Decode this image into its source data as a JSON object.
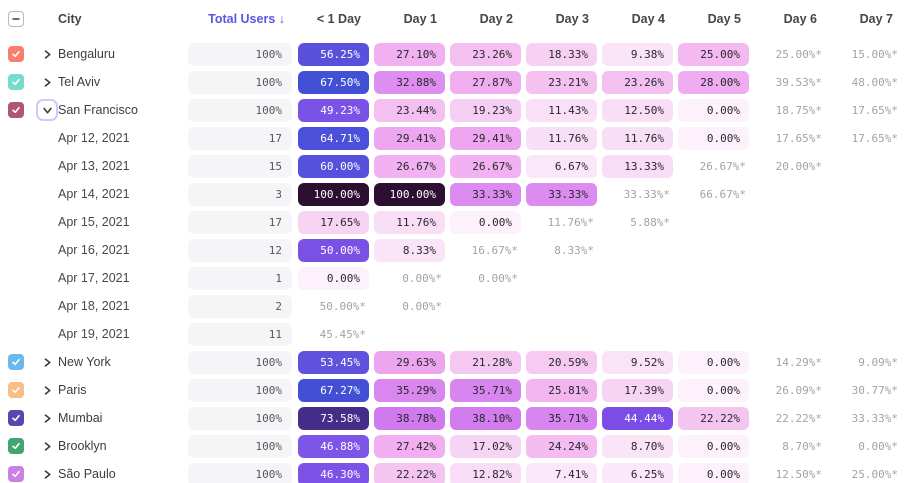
{
  "header": {
    "select_all_state": "indeterminate",
    "columns": [
      "City",
      "Total Users ↓",
      "< 1 Day",
      "Day 1",
      "Day 2",
      "Day 3",
      "Day 4",
      "Day 5",
      "Day 6",
      "Day 7"
    ]
  },
  "colors": {
    "accent_sort": "#5a55e2",
    "header_text": "#45454d",
    "star_text": "#a2a2a8",
    "total_pill_bg": "#f5f5f7",
    "heat_text_dark": "#28282d",
    "heat_text_light": "#ffffff",
    "heat_light_text_threshold": 42,
    "heat_scale": [
      [
        0,
        "#fdf1fb"
      ],
      [
        8,
        "#fae6f8"
      ],
      [
        13,
        "#f9ddf6"
      ],
      [
        18,
        "#f7d2f4"
      ],
      [
        22,
        "#f5c6f2"
      ],
      [
        26,
        "#f3b4f0"
      ],
      [
        30,
        "#eda4f0"
      ],
      [
        33,
        "#dd8df0"
      ],
      [
        36,
        "#d884ef"
      ],
      [
        39,
        "#d078ee"
      ],
      [
        42,
        "#a75eeb"
      ],
      [
        44,
        "#7b4ce6"
      ],
      [
        47,
        "#7d55e7"
      ],
      [
        51,
        "#7750e4"
      ],
      [
        54,
        "#5c52dd"
      ],
      [
        58,
        "#5750da"
      ],
      [
        62,
        "#5251df"
      ],
      [
        66,
        "#4650d7"
      ],
      [
        69,
        "#3e50d4"
      ],
      [
        74,
        "#432a81"
      ],
      [
        85,
        "#351b52"
      ],
      [
        100,
        "#2d1031"
      ]
    ]
  },
  "rows": [
    {
      "type": "city",
      "label": "Bengaluru",
      "checkbox_color": "#f97e6d",
      "checked": true,
      "expanded": false,
      "total": "100%",
      "cells": [
        {
          "text": "56.25%",
          "value": 56.25
        },
        {
          "text": "27.10%",
          "value": 27.1
        },
        {
          "text": "23.26%",
          "value": 23.26
        },
        {
          "text": "18.33%",
          "value": 18.33
        },
        {
          "text": "9.38%",
          "value": 9.38
        },
        {
          "text": "25.00%",
          "value": 25.0
        },
        {
          "text": "25.00%*",
          "value": 25.0
        },
        {
          "text": "15.00%*",
          "value": 15.0
        }
      ]
    },
    {
      "type": "city",
      "label": "Tel Aviv",
      "checkbox_color": "#74dcc9",
      "checked": true,
      "expanded": false,
      "total": "100%",
      "cells": [
        {
          "text": "67.50%",
          "value": 67.5
        },
        {
          "text": "32.88%",
          "value": 32.88
        },
        {
          "text": "27.87%",
          "value": 27.87
        },
        {
          "text": "23.21%",
          "value": 23.21
        },
        {
          "text": "23.26%",
          "value": 23.26
        },
        {
          "text": "28.00%",
          "value": 28.0
        },
        {
          "text": "39.53%*",
          "value": 39.53
        },
        {
          "text": "48.00%*",
          "value": 48.0
        }
      ]
    },
    {
      "type": "city",
      "label": "San Francisco",
      "checkbox_color": "#b15670",
      "checked": true,
      "expanded": true,
      "total": "100%",
      "cells": [
        {
          "text": "49.23%",
          "value": 49.23
        },
        {
          "text": "23.44%",
          "value": 23.44
        },
        {
          "text": "19.23%",
          "value": 19.23
        },
        {
          "text": "11.43%",
          "value": 11.43
        },
        {
          "text": "12.50%",
          "value": 12.5
        },
        {
          "text": "0.00%",
          "value": 0.0
        },
        {
          "text": "18.75%*",
          "value": 18.75
        },
        {
          "text": "17.65%*",
          "value": 17.65
        }
      ]
    },
    {
      "type": "date",
      "label": "Apr 12, 2021",
      "total": "17",
      "cells": [
        {
          "text": "64.71%",
          "value": 64.71
        },
        {
          "text": "29.41%",
          "value": 29.41
        },
        {
          "text": "29.41%",
          "value": 29.41
        },
        {
          "text": "11.76%",
          "value": 11.76
        },
        {
          "text": "11.76%",
          "value": 11.76
        },
        {
          "text": "0.00%",
          "value": 0.0
        },
        {
          "text": "17.65%*",
          "value": 17.65
        },
        {
          "text": "17.65%*",
          "value": 17.65
        }
      ]
    },
    {
      "type": "date",
      "label": "Apr 13, 2021",
      "total": "15",
      "cells": [
        {
          "text": "60.00%",
          "value": 60.0
        },
        {
          "text": "26.67%",
          "value": 26.67
        },
        {
          "text": "26.67%",
          "value": 26.67
        },
        {
          "text": "6.67%",
          "value": 6.67
        },
        {
          "text": "13.33%",
          "value": 13.33
        },
        {
          "text": "26.67%*",
          "value": 26.67
        },
        {
          "text": "20.00%*",
          "value": 20.0
        },
        null
      ]
    },
    {
      "type": "date",
      "label": "Apr 14, 2021",
      "total": "3",
      "cells": [
        {
          "text": "100.00%",
          "value": 100.0
        },
        {
          "text": "100.00%",
          "value": 100.0
        },
        {
          "text": "33.33%",
          "value": 33.33
        },
        {
          "text": "33.33%",
          "value": 33.33
        },
        {
          "text": "33.33%*",
          "value": 33.33
        },
        {
          "text": "66.67%*",
          "value": 66.67
        },
        null,
        null
      ]
    },
    {
      "type": "date",
      "label": "Apr 15, 2021",
      "total": "17",
      "cells": [
        {
          "text": "17.65%",
          "value": 17.65
        },
        {
          "text": "11.76%",
          "value": 11.76
        },
        {
          "text": "0.00%",
          "value": 0.0
        },
        {
          "text": "11.76%*",
          "value": 11.76
        },
        {
          "text": "5.88%*",
          "value": 5.88
        },
        null,
        null,
        null
      ]
    },
    {
      "type": "date",
      "label": "Apr 16, 2021",
      "total": "12",
      "cells": [
        {
          "text": "50.00%",
          "value": 50.0
        },
        {
          "text": "8.33%",
          "value": 8.33
        },
        {
          "text": "16.67%*",
          "value": 16.67
        },
        {
          "text": "8.33%*",
          "value": 8.33
        },
        null,
        null,
        null,
        null
      ]
    },
    {
      "type": "date",
      "label": "Apr 17, 2021",
      "total": "1",
      "cells": [
        {
          "text": "0.00%",
          "value": 0.0
        },
        {
          "text": "0.00%*",
          "value": 0.0
        },
        {
          "text": "0.00%*",
          "value": 0.0
        },
        null,
        null,
        null,
        null,
        null
      ]
    },
    {
      "type": "date",
      "label": "Apr 18, 2021",
      "total": "2",
      "cells": [
        {
          "text": "50.00%*",
          "value": 50.0
        },
        {
          "text": "0.00%*",
          "value": 0.0
        },
        null,
        null,
        null,
        null,
        null,
        null
      ]
    },
    {
      "type": "date",
      "label": "Apr 19, 2021",
      "total": "11",
      "cells": [
        {
          "text": "45.45%*",
          "value": 45.45
        },
        null,
        null,
        null,
        null,
        null,
        null,
        null
      ]
    },
    {
      "type": "city",
      "label": "New York",
      "checkbox_color": "#6ab9ee",
      "checked": true,
      "expanded": false,
      "total": "100%",
      "cells": [
        {
          "text": "53.45%",
          "value": 53.45
        },
        {
          "text": "29.63%",
          "value": 29.63
        },
        {
          "text": "21.28%",
          "value": 21.28
        },
        {
          "text": "20.59%",
          "value": 20.59
        },
        {
          "text": "9.52%",
          "value": 9.52
        },
        {
          "text": "0.00%",
          "value": 0.0
        },
        {
          "text": "14.29%*",
          "value": 14.29
        },
        {
          "text": "9.09%*",
          "value": 9.09
        }
      ]
    },
    {
      "type": "city",
      "label": "Paris",
      "checkbox_color": "#f9bd87",
      "checked": true,
      "expanded": false,
      "total": "100%",
      "cells": [
        {
          "text": "67.27%",
          "value": 67.27
        },
        {
          "text": "35.29%",
          "value": 35.29
        },
        {
          "text": "35.71%",
          "value": 35.71
        },
        {
          "text": "25.81%",
          "value": 25.81
        },
        {
          "text": "17.39%",
          "value": 17.39
        },
        {
          "text": "0.00%",
          "value": 0.0
        },
        {
          "text": "26.09%*",
          "value": 26.09
        },
        {
          "text": "30.77%*",
          "value": 30.77
        }
      ]
    },
    {
      "type": "city",
      "label": "Mumbai",
      "checkbox_color": "#544aae",
      "checked": true,
      "expanded": false,
      "total": "100%",
      "cells": [
        {
          "text": "73.58%",
          "value": 73.58
        },
        {
          "text": "38.78%",
          "value": 38.78
        },
        {
          "text": "38.10%",
          "value": 38.1
        },
        {
          "text": "35.71%",
          "value": 35.71
        },
        {
          "text": "44.44%",
          "value": 44.44
        },
        {
          "text": "22.22%",
          "value": 22.22
        },
        {
          "text": "22.22%*",
          "value": 22.22
        },
        {
          "text": "33.33%*",
          "value": 33.33
        }
      ]
    },
    {
      "type": "city",
      "label": "Brooklyn",
      "checkbox_color": "#42a56f",
      "checked": true,
      "expanded": false,
      "total": "100%",
      "cells": [
        {
          "text": "46.88%",
          "value": 46.88
        },
        {
          "text": "27.42%",
          "value": 27.42
        },
        {
          "text": "17.02%",
          "value": 17.02
        },
        {
          "text": "24.24%",
          "value": 24.24
        },
        {
          "text": "8.70%",
          "value": 8.7
        },
        {
          "text": "0.00%",
          "value": 0.0
        },
        {
          "text": "8.70%*",
          "value": 8.7
        },
        {
          "text": "0.00%*",
          "value": 0.0
        }
      ]
    },
    {
      "type": "city",
      "label": "São Paulo",
      "checkbox_color": "#c981e3",
      "checked": true,
      "expanded": false,
      "total": "100%",
      "cells": [
        {
          "text": "46.30%",
          "value": 46.3
        },
        {
          "text": "22.22%",
          "value": 22.22
        },
        {
          "text": "12.82%",
          "value": 12.82
        },
        {
          "text": "7.41%",
          "value": 7.41
        },
        {
          "text": "6.25%",
          "value": 6.25
        },
        {
          "text": "0.00%",
          "value": 0.0
        },
        {
          "text": "12.50%*",
          "value": 12.5
        },
        {
          "text": "25.00%*",
          "value": 25.0
        }
      ]
    }
  ]
}
